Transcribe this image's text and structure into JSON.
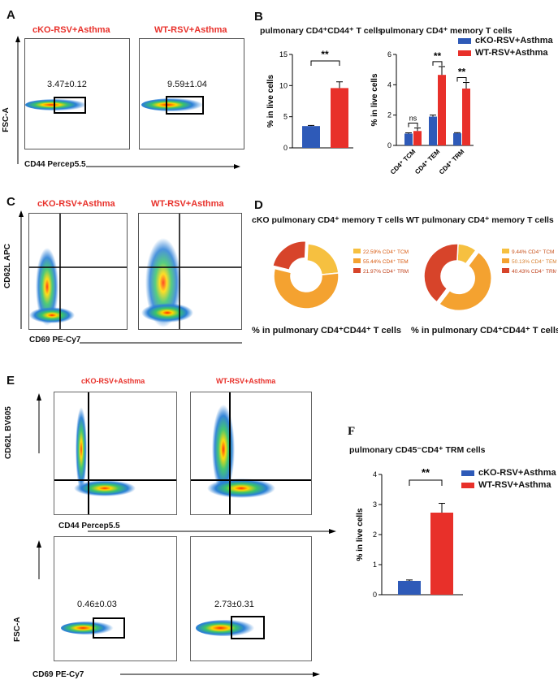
{
  "panels": {
    "A": {
      "letter": "A",
      "conditions": [
        "cKO-RSV+Asthma",
        "WT-RSV+Asthma"
      ],
      "y_label": "FSC-A",
      "x_label": "CD44 Percep5.5",
      "gate_values": [
        "3.47±0.12",
        "9.59±1.04"
      ]
    },
    "B": {
      "letter": "B"
    },
    "C": {
      "letter": "C",
      "conditions": [
        "cKO-RSV+Asthma",
        "WT-RSV+Asthma"
      ],
      "y_label": "CD62L APC",
      "x_label": "CD69 PE-Cy7"
    },
    "D": {
      "letter": "D",
      "titles": [
        "cKO pulmonary CD4⁺ memory T cells",
        "WT pulmonary CD4⁺ memory T cells"
      ],
      "captions": [
        "% in pulmonary CD4⁺CD44⁺ T cells",
        "% in pulmonary CD4⁺CD44⁺ T cells"
      ]
    },
    "E": {
      "letter": "E",
      "conditions": [
        "cKO-RSV+Asthma",
        "WT-RSV+Asthma"
      ],
      "top_y_label": "CD62L BV605",
      "top_x_label": "CD44 Percep5.5",
      "bottom_y_label": "FSC-A",
      "bottom_x_label": "CD69 PE-Cy7",
      "gate_values": [
        "0.46±0.03",
        "2.73±0.31"
      ]
    },
    "F": {
      "letter": "F"
    }
  },
  "legend": {
    "cko": "cKO-RSV+Asthma",
    "wt": "WT-RSV+Asthma"
  },
  "colors": {
    "cko": "#2e5ab8",
    "wt": "#e8302a",
    "pie_dark": "#d7442a",
    "pie_mid": "#f4a230",
    "pie_light": "#f6c040"
  },
  "chart_data": [
    {
      "id": "B1",
      "type": "bar",
      "title": "pulmonary CD4⁺CD44⁺ T cells",
      "ylabel": "% in live cells",
      "ylim": [
        0,
        15
      ],
      "yticks": [
        "0",
        "5",
        "10",
        "15"
      ],
      "series": [
        {
          "name": "cKO-RSV+Asthma",
          "values": [
            3.5
          ]
        },
        {
          "name": "WT-RSV+Asthma",
          "values": [
            9.6
          ]
        }
      ],
      "errors": [
        0.1,
        1.0
      ],
      "significance": "**"
    },
    {
      "id": "B2",
      "type": "bar",
      "title": "pulmonary CD4⁺ memory T cells",
      "ylabel": "% in live cells",
      "ylim": [
        0,
        6
      ],
      "yticks": [
        "0",
        "2",
        "4",
        "6"
      ],
      "categories": [
        "CD4⁺ TCM",
        "CD4⁺ TEM",
        "CD4⁺ TRM"
      ],
      "series": [
        {
          "name": "cKO-RSV+Asthma",
          "values": [
            0.78,
            1.9,
            0.8
          ],
          "errors": [
            0.05,
            0.1,
            0.04
          ]
        },
        {
          "name": "WT-RSV+Asthma",
          "values": [
            0.95,
            4.65,
            3.75
          ],
          "errors": [
            0.2,
            0.55,
            0.4
          ]
        }
      ],
      "significance": [
        "ns",
        "**",
        "**"
      ]
    },
    {
      "id": "D1",
      "type": "pie",
      "title": "cKO pulmonary CD4⁺ memory T cells",
      "labels": [
        "CD4⁺ TCM",
        "CD4⁺ TEM",
        "CD4⁺ TRM"
      ],
      "values": [
        22.59,
        55.44,
        21.97
      ],
      "value_labels": [
        "22.59%",
        "55.44%",
        "21.97%"
      ]
    },
    {
      "id": "D2",
      "type": "pie",
      "title": "WT pulmonary CD4⁺ memory T cells",
      "labels": [
        "CD4⁺ TCM",
        "CD4⁺ TEM",
        "CD4⁺ TRM"
      ],
      "values": [
        9.44,
        50.13,
        40.43
      ],
      "value_labels": [
        "9.44%",
        "50.13%",
        "40.43%"
      ]
    },
    {
      "id": "F",
      "type": "bar",
      "title": "pulmonary CD45⁻CD4⁺ TRM cells",
      "ylabel": "% in live cells",
      "ylim": [
        0,
        4
      ],
      "yticks": [
        "0",
        "1",
        "2",
        "3",
        "4"
      ],
      "series": [
        {
          "name": "cKO-RSV+Asthma",
          "values": [
            0.46
          ]
        },
        {
          "name": "WT-RSV+Asthma",
          "values": [
            2.73
          ]
        }
      ],
      "errors": [
        0.03,
        0.31
      ],
      "significance": "**"
    }
  ]
}
